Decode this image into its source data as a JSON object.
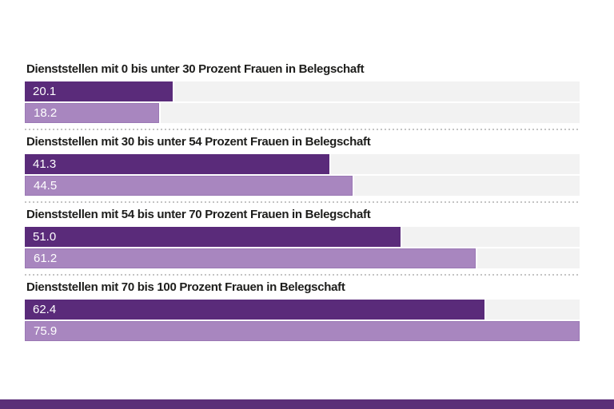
{
  "chart": {
    "sections": [
      {
        "title": "Dienststellen mit 0 bis unter 30 Prozent Frauen in Belegschaft",
        "bars": [
          {
            "label": "20.1",
            "value": 20.1,
            "tone": "dark"
          },
          {
            "label": "18.2",
            "value": 18.2,
            "tone": "light"
          }
        ]
      },
      {
        "title": "Dienststellen mit 30 bis unter 54 Prozent Frauen in Belegschaft",
        "bars": [
          {
            "label": "41.3",
            "value": 41.3,
            "tone": "dark"
          },
          {
            "label": "44.5",
            "value": 44.5,
            "tone": "light"
          }
        ]
      },
      {
        "title": "Dienststellen mit 54 bis unter 70 Prozent Frauen in Belegschaft",
        "bars": [
          {
            "label": "51.0",
            "value": 51.0,
            "tone": "dark"
          },
          {
            "label": "61.2",
            "value": 61.2,
            "tone": "light"
          }
        ]
      },
      {
        "title": "Dienststellen mit 70 bis 100 Prozent Frauen in Belegschaft",
        "bars": [
          {
            "label": "62.4",
            "value": 62.4,
            "tone": "dark"
          },
          {
            "label": "75.9",
            "value": 75.9,
            "tone": "light"
          }
        ]
      }
    ]
  },
  "chart_data": {
    "type": "bar",
    "orientation": "horizontal",
    "categories": [
      "Dienststellen mit 0 bis unter 30 Prozent Frauen in Belegschaft",
      "Dienststellen mit 30 bis unter 54 Prozent Frauen in Belegschaft",
      "Dienststellen mit 54 bis unter 70 Prozent Frauen in Belegschaft",
      "Dienststellen mit 70 bis 100 Prozent Frauen in Belegschaft"
    ],
    "series": [
      {
        "name": "dark-purple-bar",
        "color": "#5a2b7a",
        "values": [
          20.1,
          41.3,
          51.0,
          62.4
        ]
      },
      {
        "name": "light-purple-bar",
        "color": "#a886bf",
        "values": [
          18.2,
          44.5,
          61.2,
          75.9
        ]
      }
    ],
    "value_labels": "inside-left, white",
    "xlim": [
      0,
      75.3
    ],
    "grid": false,
    "legend": false
  },
  "colors": {
    "bar_dark": "#5a2b7a",
    "bar_light": "#a886bf",
    "bar_light_border": "#9a78b4",
    "track": "#f2f2f2",
    "heading_text": "#1d1d1b",
    "separator": "#c4c4c4",
    "footer_band": "#5b2f78",
    "page_background": "#ffffff"
  }
}
